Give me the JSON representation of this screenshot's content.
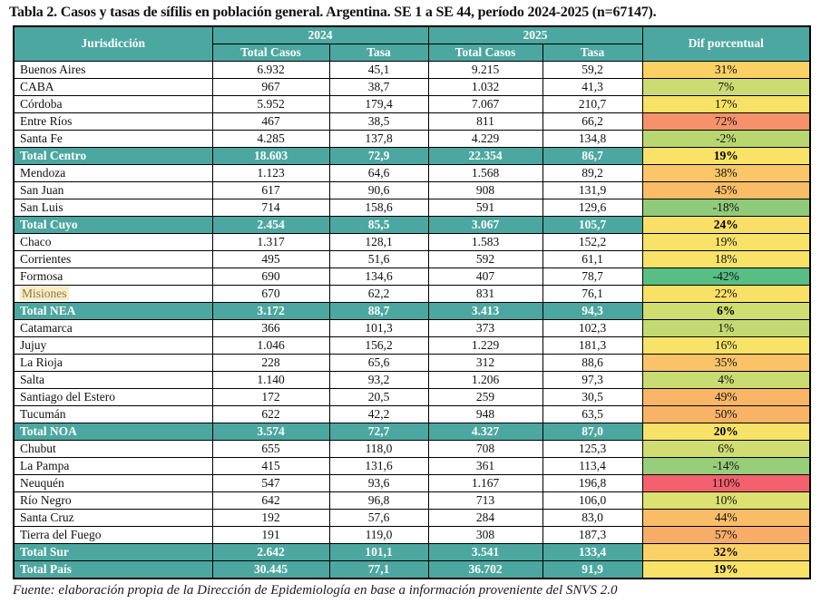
{
  "title": "Tabla 2. Casos y tasas de sífilis en población general. Argentina. SE 1 a SE 44, período 2024-2025 (n=67147).",
  "footer": "Fuente: elaboración propia de la Dirección de Epidemiología en base a información proveniente del SNVS 2.0",
  "colors": {
    "header_teal": "#4CA7A0",
    "total_row_teal": "#4CA7A0",
    "border": "#000000",
    "highlight_bg": "#FAEDC3",
    "highlight_text": "#89794F"
  },
  "table": {
    "header": {
      "jurisdiccion": "Jurisdicción",
      "year_2024": "2024",
      "year_2025": "2025",
      "total_casos": "Total Casos",
      "tasa": "Tasa",
      "dif": "Dif porcentual"
    },
    "rows": [
      {
        "jurisdiccion": "Buenos Aires",
        "total_2024": "6.932",
        "tasa_2024": "45,1",
        "total_2025": "9.215",
        "tasa_2025": "59,2",
        "dif": "31%",
        "dif_color": "#FBD166"
      },
      {
        "jurisdiccion": "CABA",
        "total_2024": "967",
        "tasa_2024": "38,7",
        "total_2025": "1.032",
        "tasa_2025": "41,3",
        "dif": "7%",
        "dif_color": "#CDDC72"
      },
      {
        "jurisdiccion": "Córdoba",
        "total_2024": "5.952",
        "tasa_2024": "179,4",
        "total_2025": "7.067",
        "tasa_2025": "210,7",
        "dif": "17%",
        "dif_color": "#F7E267"
      },
      {
        "jurisdiccion": "Entre Ríos",
        "total_2024": "467",
        "tasa_2024": "38,5",
        "total_2025": "811",
        "tasa_2025": "66,2",
        "dif": "72%",
        "dif_color": "#F5926C"
      },
      {
        "jurisdiccion": "Santa Fe",
        "total_2024": "4.285",
        "tasa_2024": "137,8",
        "total_2025": "4.229",
        "tasa_2025": "134,8",
        "dif": "-2%",
        "dif_color": "#B9D771"
      },
      {
        "jurisdiccion": "Total Centro",
        "total_2024": "18.603",
        "tasa_2024": "72,9",
        "total_2025": "22.354",
        "tasa_2025": "86,7",
        "dif": "19%",
        "dif_color": "#F8E268",
        "is_total": true
      },
      {
        "jurisdiccion": "Mendoza",
        "total_2024": "1.123",
        "tasa_2024": "64,6",
        "total_2025": "1.568",
        "tasa_2025": "89,2",
        "dif": "38%",
        "dif_color": "#FAC667"
      },
      {
        "jurisdiccion": "San Juan",
        "total_2024": "617",
        "tasa_2024": "90,6",
        "total_2025": "908",
        "tasa_2025": "131,9",
        "dif": "45%",
        "dif_color": "#F9BC67"
      },
      {
        "jurisdiccion": "San Luis",
        "total_2024": "714",
        "tasa_2024": "158,6",
        "total_2025": "591",
        "tasa_2025": "129,6",
        "dif": "-18%",
        "dif_color": "#90CB7B"
      },
      {
        "jurisdiccion": "Total Cuyo",
        "total_2024": "2.454",
        "tasa_2024": "85,5",
        "total_2025": "3.067",
        "tasa_2025": "105,7",
        "dif": "24%",
        "dif_color": "#F9DF67",
        "is_total": true
      },
      {
        "jurisdiccion": "Chaco",
        "total_2024": "1.317",
        "tasa_2024": "128,1",
        "total_2025": "1.583",
        "tasa_2025": "152,2",
        "dif": "19%",
        "dif_color": "#F8E268"
      },
      {
        "jurisdiccion": "Corrientes",
        "total_2024": "495",
        "tasa_2024": "51,6",
        "total_2025": "592",
        "tasa_2025": "61,1",
        "dif": "18%",
        "dif_color": "#F8E368"
      },
      {
        "jurisdiccion": "Formosa",
        "total_2024": "690",
        "tasa_2024": "134,6",
        "total_2025": "407",
        "tasa_2025": "78,7",
        "dif": "-42%",
        "dif_color": "#58BE84"
      },
      {
        "jurisdiccion": "Misiones",
        "total_2024": "670",
        "tasa_2024": "62,2",
        "total_2025": "831",
        "tasa_2025": "76,1",
        "dif": "22%",
        "dif_color": "#F9E067",
        "highlighted": true
      },
      {
        "jurisdiccion": "Total NEA",
        "total_2024": "3.172",
        "tasa_2024": "88,7",
        "total_2025": "3.413",
        "tasa_2025": "94,3",
        "dif": "6%",
        "dif_color": "#CFDD71",
        "is_total": true
      },
      {
        "jurisdiccion": "Catamarca",
        "total_2024": "366",
        "tasa_2024": "101,3",
        "total_2025": "373",
        "tasa_2025": "102,3",
        "dif": "1%",
        "dif_color": "#C3D974"
      },
      {
        "jurisdiccion": "Jujuy",
        "total_2024": "1.046",
        "tasa_2024": "156,2",
        "total_2025": "1.229",
        "tasa_2025": "181,3",
        "dif": "16%",
        "dif_color": "#F7E368"
      },
      {
        "jurisdiccion": "La Rioja",
        "total_2024": "228",
        "tasa_2024": "65,6",
        "total_2025": "312",
        "tasa_2025": "88,6",
        "dif": "35%",
        "dif_color": "#FAC367"
      },
      {
        "jurisdiccion": "Salta",
        "total_2024": "1.140",
        "tasa_2024": "93,2",
        "total_2025": "1.206",
        "tasa_2025": "97,3",
        "dif": "4%",
        "dif_color": "#C9DB73"
      },
      {
        "jurisdiccion": "Santiago del Estero",
        "total_2024": "172",
        "tasa_2024": "20,5",
        "total_2025": "259",
        "tasa_2025": "30,5",
        "dif": "49%",
        "dif_color": "#F9B666"
      },
      {
        "jurisdiccion": "Tucumán",
        "total_2024": "622",
        "tasa_2024": "42,2",
        "total_2025": "948",
        "tasa_2025": "63,5",
        "dif": "50%",
        "dif_color": "#F8B366"
      },
      {
        "jurisdiccion": "Total NOA",
        "total_2024": "3.574",
        "tasa_2024": "72,7",
        "total_2025": "4.327",
        "tasa_2025": "87,0",
        "dif": "20%",
        "dif_color": "#F7E269",
        "is_total": true
      },
      {
        "jurisdiccion": "Chubut",
        "total_2024": "655",
        "tasa_2024": "118,0",
        "total_2025": "708",
        "tasa_2025": "125,3",
        "dif": "6%",
        "dif_color": "#CFDD71"
      },
      {
        "jurisdiccion": "La Pampa",
        "total_2024": "415",
        "tasa_2024": "131,6",
        "total_2025": "361",
        "tasa_2025": "113,4",
        "dif": "-14%",
        "dif_color": "#97CE79"
      },
      {
        "jurisdiccion": "Neuquén",
        "total_2024": "547",
        "tasa_2024": "93,6",
        "total_2025": "1.167",
        "tasa_2025": "196,8",
        "dif": "110%",
        "dif_color": "#F4616E"
      },
      {
        "jurisdiccion": "Río Negro",
        "total_2024": "642",
        "tasa_2024": "96,8",
        "total_2025": "713",
        "tasa_2025": "106,0",
        "dif": "10%",
        "dif_color": "#DDE171"
      },
      {
        "jurisdiccion": "Santa Cruz",
        "total_2024": "192",
        "tasa_2024": "57,6",
        "total_2025": "284",
        "tasa_2025": "83,0",
        "dif": "44%",
        "dif_color": "#F9BD68"
      },
      {
        "jurisdiccion": "Tierra del Fuego",
        "total_2024": "191",
        "tasa_2024": "119,0",
        "total_2025": "308",
        "tasa_2025": "187,3",
        "dif": "57%",
        "dif_color": "#F7AC68"
      },
      {
        "jurisdiccion": "Total Sur",
        "total_2024": "2.642",
        "tasa_2024": "101,1",
        "total_2025": "3.541",
        "tasa_2025": "133,4",
        "dif": "32%",
        "dif_color": "#F9D167",
        "is_total": true
      },
      {
        "jurisdiccion": "Total País",
        "total_2024": "30.445",
        "tasa_2024": "77,1",
        "total_2025": "36.702",
        "tasa_2025": "91,9",
        "dif": "19%",
        "dif_color": "#F8E268",
        "is_total": true
      }
    ]
  }
}
